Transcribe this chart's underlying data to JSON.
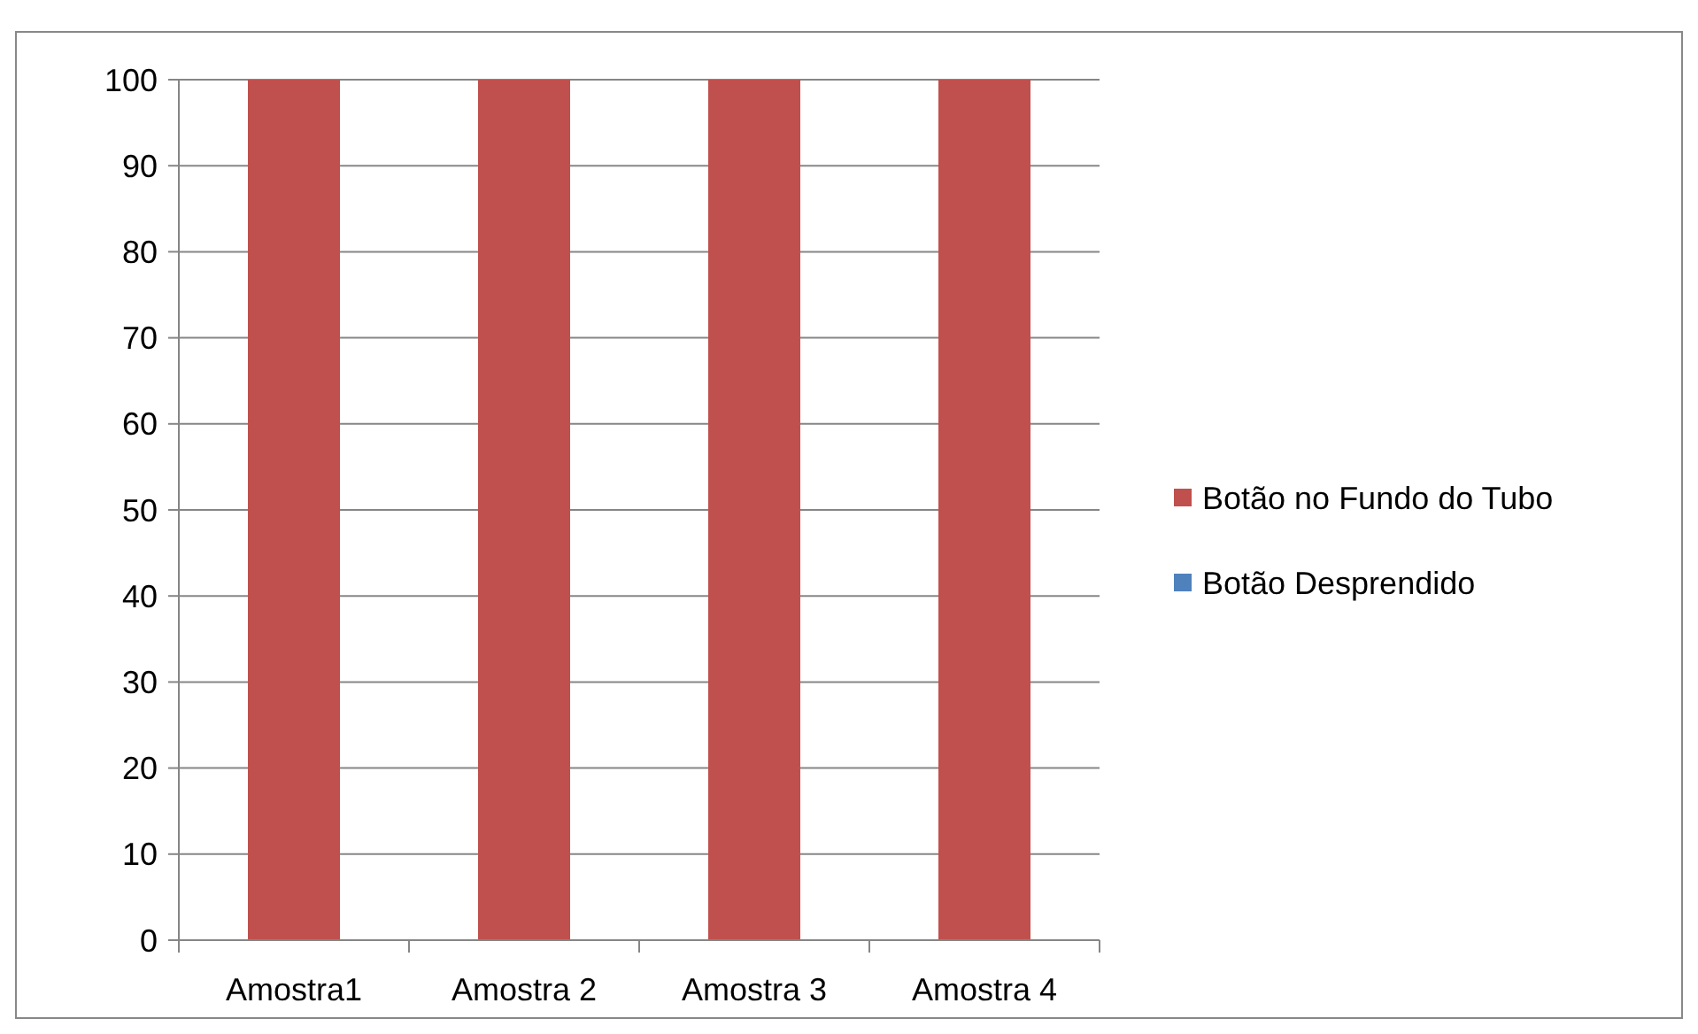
{
  "chart_data": {
    "type": "bar",
    "stacked": true,
    "categories": [
      "Amostra1",
      "Amostra 2",
      "Amostra 3",
      "Amostra 4"
    ],
    "series": [
      {
        "name": "Botão no Fundo do Tubo",
        "color": "#c0504d",
        "values": [
          100,
          100,
          100,
          100
        ]
      },
      {
        "name": "Botão Desprendido",
        "color": "#4f81bd",
        "values": [
          0,
          0,
          0,
          0
        ]
      }
    ],
    "ylim": [
      0,
      100
    ],
    "yticks": [
      0,
      10,
      20,
      30,
      40,
      50,
      60,
      70,
      80,
      90,
      100
    ],
    "grid": "y",
    "legend": "right"
  }
}
